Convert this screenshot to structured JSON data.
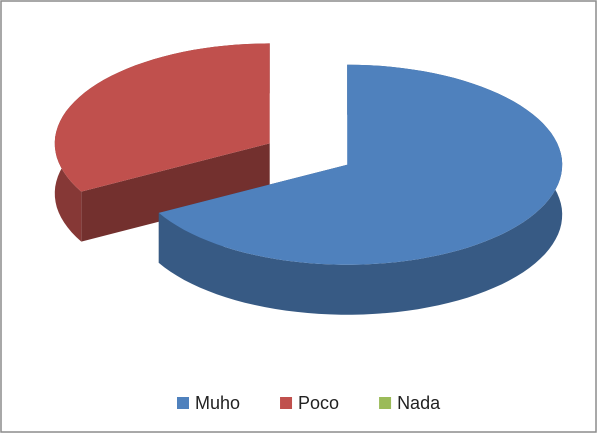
{
  "chart_data": {
    "type": "pie",
    "categories": [
      "Muho",
      "Poco",
      "Nada"
    ],
    "values": [
      67,
      33,
      0
    ],
    "colors": [
      "#4f81bd",
      "#c0504d",
      "#9bbb59"
    ],
    "legend": "bottom"
  }
}
